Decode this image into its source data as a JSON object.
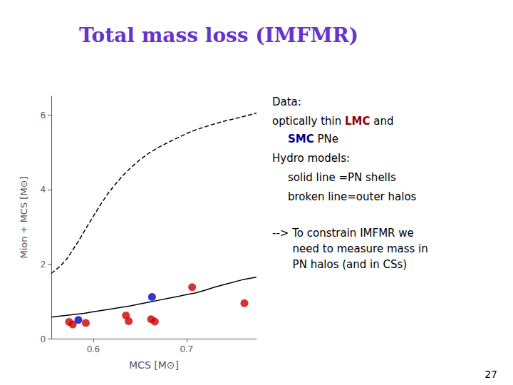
{
  "chart_data": {
    "type": "scatter",
    "title": "Total mass loss (IMFMR)",
    "title_color": "#6633cc",
    "xlabel": "MCS [M⊙]",
    "ylabel": "Mion + MCS [M⊙]",
    "xlim": [
      0.555,
      0.775
    ],
    "ylim": [
      0.0,
      6.5
    ],
    "xticks": [
      0.6,
      0.7
    ],
    "yticks": [
      0,
      2,
      4,
      6
    ],
    "grid": false,
    "series": [
      {
        "type": "line",
        "color": "#000000",
        "line_style": "solid",
        "x": [
          0.555,
          0.57,
          0.58,
          0.59,
          0.6,
          0.61,
          0.62,
          0.63,
          0.64,
          0.65,
          0.66,
          0.67,
          0.68,
          0.69,
          0.7,
          0.71,
          0.72,
          0.73,
          0.74,
          0.76,
          0.775
        ],
        "values": [
          0.58,
          0.62,
          0.65,
          0.68,
          0.72,
          0.76,
          0.8,
          0.84,
          0.88,
          0.93,
          0.98,
          1.03,
          1.08,
          1.13,
          1.18,
          1.23,
          1.3,
          1.38,
          1.45,
          1.58,
          1.65
        ]
      },
      {
        "type": "line",
        "color": "#000000",
        "line_style": "dashed",
        "x": [
          0.555,
          0.565,
          0.572,
          0.578,
          0.585,
          0.592,
          0.6,
          0.608,
          0.616,
          0.624,
          0.632,
          0.64,
          0.65,
          0.66,
          0.67,
          0.68,
          0.69,
          0.7,
          0.71,
          0.72,
          0.73,
          0.74,
          0.75,
          0.76,
          0.775
        ],
        "values": [
          1.75,
          1.95,
          2.15,
          2.38,
          2.65,
          2.95,
          3.28,
          3.6,
          3.9,
          4.15,
          4.38,
          4.58,
          4.8,
          4.98,
          5.13,
          5.26,
          5.38,
          5.5,
          5.6,
          5.68,
          5.76,
          5.83,
          5.89,
          5.95,
          6.05
        ]
      },
      {
        "type": "scatter",
        "color": "#cc0000",
        "marker": "circle",
        "x": [
          0.574,
          0.578,
          0.592,
          0.635,
          0.638,
          0.662,
          0.666,
          0.706,
          0.762
        ],
        "values": [
          0.45,
          0.38,
          0.42,
          0.62,
          0.47,
          0.52,
          0.46,
          1.38,
          0.95
        ]
      },
      {
        "type": "scatter",
        "color": "#0000cc",
        "marker": "circle",
        "x": [
          0.584,
          0.663
        ],
        "values": [
          0.5,
          1.12
        ]
      }
    ],
    "annotations": [
      [
        {
          "text": "Data:"
        }
      ],
      [
        {
          "text": "optically thin "
        },
        {
          "text": "LMC",
          "color": "#8b0000"
        },
        {
          "text": " and"
        }
      ],
      [
        {
          "text": "SMC",
          "color": "#00008b"
        },
        {
          "text": " PNe"
        }
      ],
      [
        {
          "text": "Hydro models:"
        }
      ],
      [
        {
          "text": "solid line =PN shells"
        }
      ],
      [
        {
          "text": "broken line=outer halos"
        }
      ],
      [
        {
          "text": "--> To constrain IMFMR we\n      need to measure mass in\n      PN halos (and in CSs)"
        }
      ]
    ],
    "slide_number": "27"
  }
}
